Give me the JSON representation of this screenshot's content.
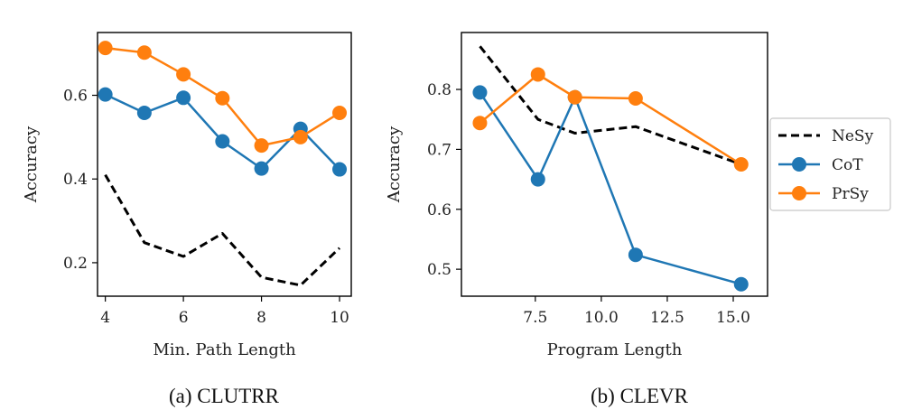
{
  "colors": {
    "NeSy": "#000000",
    "CoT": "#1f77b4",
    "PrSy": "#ff7f0e"
  },
  "legend": {
    "entries": [
      "NeSy",
      "CoT",
      "PrSy"
    ]
  },
  "chart_data": [
    {
      "type": "line",
      "caption": "(a) CLUTRR",
      "xlabel": "Min. Path Length",
      "ylabel": "Accuracy",
      "xlim": [
        3.8,
        10.3
      ],
      "ylim": [
        0.12,
        0.75
      ],
      "xticks": [
        4,
        6,
        8,
        10
      ],
      "xtick_labels": [
        "4",
        "6",
        "8",
        "10"
      ],
      "yticks": [
        0.2,
        0.4,
        0.6
      ],
      "ytick_labels": [
        "0.2",
        "0.4",
        "0.6"
      ],
      "x": [
        4,
        5,
        6,
        7,
        8,
        9,
        10
      ],
      "series": [
        {
          "name": "NeSy",
          "style": "dashed",
          "markers": false,
          "values": [
            0.41,
            0.248,
            0.215,
            0.27,
            0.165,
            0.146,
            0.235
          ]
        },
        {
          "name": "CoT",
          "style": "solid",
          "markers": true,
          "values": [
            0.602,
            0.558,
            0.594,
            0.49,
            0.425,
            0.52,
            0.423
          ]
        },
        {
          "name": "PrSy",
          "style": "solid",
          "markers": true,
          "values": [
            0.713,
            0.702,
            0.65,
            0.593,
            0.48,
            0.5,
            0.558
          ]
        }
      ]
    },
    {
      "type": "line",
      "caption": "(b) CLEVR",
      "xlabel": "Program Length",
      "ylabel": "Accuracy",
      "xlim": [
        4.7,
        16.3
      ],
      "ylim": [
        0.455,
        0.895
      ],
      "xticks": [
        7.5,
        10.0,
        12.5,
        15.0
      ],
      "xtick_labels": [
        "7.5",
        "10.0",
        "12.5",
        "15.0"
      ],
      "yticks": [
        0.5,
        0.6,
        0.7,
        0.8
      ],
      "ytick_labels": [
        "0.5",
        "0.6",
        "0.7",
        "0.8"
      ],
      "x": [
        5.4,
        7.6,
        9.0,
        11.3,
        15.3
      ],
      "series": [
        {
          "name": "NeSy",
          "style": "dashed",
          "markers": false,
          "x": [
            5.4,
            7.6,
            9.0,
            11.3,
            15.3
          ],
          "values": [
            0.872,
            0.75,
            0.727,
            0.738,
            0.675
          ]
        },
        {
          "name": "CoT",
          "style": "solid",
          "markers": true,
          "values": [
            0.795,
            0.65,
            0.787,
            0.524,
            0.475
          ]
        },
        {
          "name": "PrSy",
          "style": "solid",
          "markers": true,
          "values": [
            0.744,
            0.825,
            0.787,
            0.785,
            0.675
          ]
        }
      ]
    }
  ]
}
